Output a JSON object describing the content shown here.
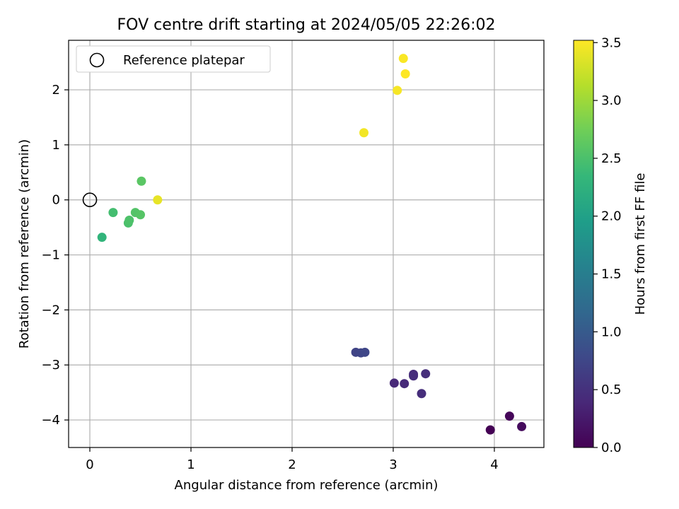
{
  "chart_data": {
    "type": "scatter",
    "title": "FOV centre drift starting at 2024/05/05 22:26:02",
    "xlabel": "Angular distance from reference (arcmin)",
    "ylabel": "Rotation from reference (arcmin)",
    "xlim": [
      -0.21,
      4.49
    ],
    "ylim": [
      -4.5,
      2.9
    ],
    "xticks": [
      0,
      1,
      2,
      3,
      4
    ],
    "yticks": [
      -4,
      -3,
      -2,
      -1,
      0,
      1,
      2
    ],
    "xtick_labels": [
      "0",
      "1",
      "2",
      "3",
      "4"
    ],
    "ytick_labels": [
      "−4",
      "−3",
      "−2",
      "−1",
      "0",
      "1",
      "2"
    ],
    "grid": true,
    "legend": {
      "position": "top-left",
      "entries": [
        {
          "label": "Reference platepar",
          "marker": "hollow-circle"
        }
      ]
    },
    "reference_point": {
      "x": 0,
      "y": 0
    },
    "colorbar": {
      "label": "Hours from first FF file",
      "range": [
        0.0,
        3.52
      ],
      "ticks": [
        0.0,
        0.5,
        1.0,
        1.5,
        2.0,
        2.5,
        3.0,
        3.5
      ],
      "tick_labels": [
        "0.0",
        "0.5",
        "1.0",
        "1.5",
        "2.0",
        "2.5",
        "3.0",
        "3.5"
      ],
      "colormap": "viridis",
      "stops": [
        "#440154",
        "#482878",
        "#3e4989",
        "#31688e",
        "#26828e",
        "#1f9e89",
        "#35b779",
        "#6ece58",
        "#b5de2b",
        "#fde725"
      ]
    },
    "points": [
      {
        "x": 3.96,
        "y": -4.18,
        "hours": 0.0
      },
      {
        "x": 4.15,
        "y": -3.93,
        "hours": 0.05
      },
      {
        "x": 4.27,
        "y": -4.12,
        "hours": 0.1
      },
      {
        "x": 3.01,
        "y": -3.33,
        "hours": 0.4
      },
      {
        "x": 3.11,
        "y": -3.34,
        "hours": 0.42
      },
      {
        "x": 3.2,
        "y": -3.17,
        "hours": 0.44
      },
      {
        "x": 3.2,
        "y": -3.2,
        "hours": 0.45
      },
      {
        "x": 3.28,
        "y": -3.52,
        "hours": 0.46
      },
      {
        "x": 3.32,
        "y": -3.16,
        "hours": 0.47
      },
      {
        "x": 2.63,
        "y": -2.77,
        "hours": 0.72
      },
      {
        "x": 2.68,
        "y": -2.78,
        "hours": 0.74
      },
      {
        "x": 2.72,
        "y": -2.77,
        "hours": 0.76
      },
      {
        "x": 0.12,
        "y": -0.68,
        "hours": 2.3
      },
      {
        "x": 0.23,
        "y": -0.23,
        "hours": 2.45
      },
      {
        "x": 0.38,
        "y": -0.42,
        "hours": 2.5
      },
      {
        "x": 0.39,
        "y": -0.37,
        "hours": 2.52
      },
      {
        "x": 0.45,
        "y": -0.23,
        "hours": 2.55
      },
      {
        "x": 0.5,
        "y": -0.27,
        "hours": 2.57
      },
      {
        "x": 0.51,
        "y": 0.34,
        "hours": 2.6
      },
      {
        "x": 0.67,
        "y": 0.0,
        "hours": 3.4
      },
      {
        "x": 2.71,
        "y": 1.22,
        "hours": 3.46
      },
      {
        "x": 3.04,
        "y": 1.99,
        "hours": 3.48
      },
      {
        "x": 3.1,
        "y": 2.57,
        "hours": 3.5
      },
      {
        "x": 3.12,
        "y": 2.29,
        "hours": 3.52
      }
    ]
  }
}
